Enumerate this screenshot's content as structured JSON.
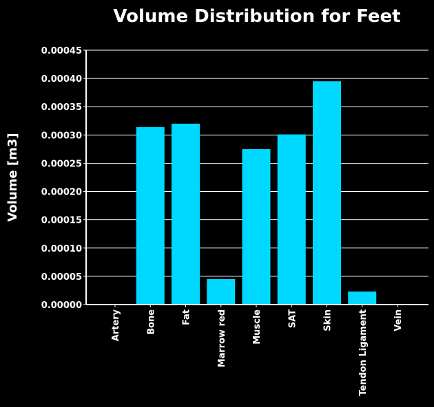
{
  "chart_data": {
    "type": "bar",
    "title": "Volume Distribution for Feet",
    "xlabel": "",
    "ylabel": "Volume [m3]",
    "categories": [
      "Artery",
      "Bone",
      "Fat",
      "Marrow red",
      "Muscle",
      "SAT",
      "Skin",
      "Tendon Ligament",
      "Vein"
    ],
    "values": [
      0.0,
      0.000314,
      0.00032,
      4.5e-05,
      0.000275,
      0.000301,
      0.000395,
      2.3e-05,
      0.0
    ],
    "ylim": [
      0,
      0.00045
    ],
    "yticks": [
      "0.00000",
      "0.00005",
      "0.00010",
      "0.00015",
      "0.00020",
      "0.00025",
      "0.00030",
      "0.00035",
      "0.00040",
      "0.00045"
    ],
    "grid": "horizontal",
    "colors": {
      "background": "#000000",
      "bar": "#00d9ff",
      "axis": "#ffffff",
      "grid": "#ffffff",
      "text": "#ffffff"
    }
  }
}
